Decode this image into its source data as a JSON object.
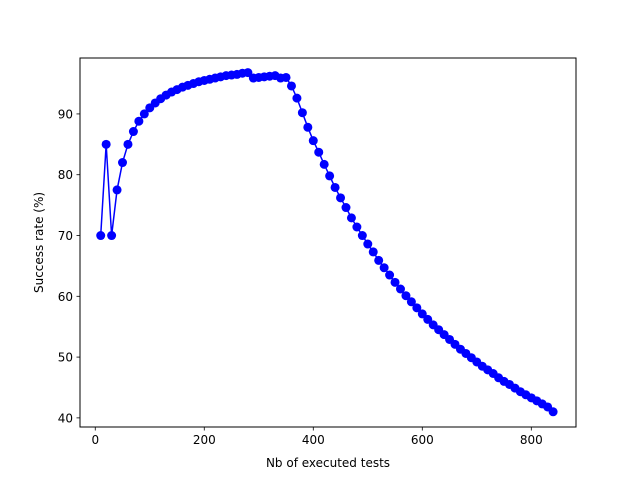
{
  "chart_data": {
    "type": "line",
    "title": "",
    "xlabel": "Nb of executed tests",
    "ylabel": "Success rate (%)",
    "xlim": [
      -28,
      882
    ],
    "ylim": [
      38.5,
      99.2
    ],
    "xticks": [
      0,
      200,
      400,
      600,
      800
    ],
    "yticks": [
      40,
      50,
      60,
      70,
      80,
      90
    ],
    "grid": false,
    "legend": "none",
    "series": [
      {
        "color": "#0000ff",
        "marker": "circle",
        "x": [
          10,
          20,
          30,
          40,
          50,
          60,
          70,
          80,
          90,
          100,
          110,
          120,
          130,
          140,
          150,
          160,
          170,
          180,
          190,
          200,
          210,
          220,
          230,
          240,
          250,
          260,
          270,
          280,
          290,
          300,
          310,
          320,
          330,
          340,
          350,
          360,
          370,
          380,
          390,
          400,
          410,
          420,
          430,
          440,
          450,
          460,
          470,
          480,
          490,
          500,
          510,
          520,
          530,
          540,
          550,
          560,
          570,
          580,
          590,
          600,
          610,
          620,
          630,
          640,
          650,
          660,
          670,
          680,
          690,
          700,
          710,
          720,
          730,
          740,
          750,
          760,
          770,
          780,
          790,
          800,
          810,
          820,
          830,
          840
        ],
        "y": [
          70.0,
          85.0,
          70.0,
          77.5,
          82.0,
          85.0,
          87.1,
          88.8,
          90.0,
          91.0,
          91.8,
          92.5,
          93.1,
          93.6,
          94.0,
          94.4,
          94.7,
          95.0,
          95.3,
          95.5,
          95.7,
          95.9,
          96.1,
          96.3,
          96.4,
          96.5,
          96.7,
          96.8,
          95.9,
          96.0,
          96.1,
          96.2,
          96.3,
          95.9,
          96.0,
          94.6,
          92.6,
          90.2,
          87.8,
          85.6,
          83.7,
          81.7,
          79.8,
          77.9,
          76.2,
          74.6,
          72.9,
          71.4,
          70.0,
          68.6,
          67.3,
          65.9,
          64.7,
          63.5,
          62.3,
          61.2,
          60.1,
          59.1,
          58.1,
          57.1,
          56.2,
          55.3,
          54.5,
          53.7,
          52.9,
          52.1,
          51.3,
          50.6,
          49.9,
          49.2,
          48.5,
          47.9,
          47.3,
          46.6,
          46.0,
          45.5,
          44.9,
          44.3,
          43.8,
          43.3,
          42.8,
          42.3,
          41.8,
          41.0
        ]
      }
    ]
  }
}
